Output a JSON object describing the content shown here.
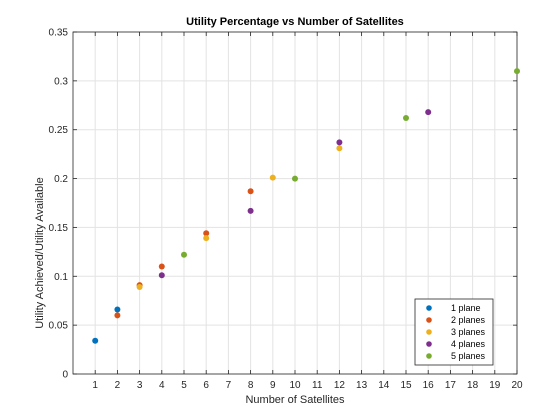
{
  "chart_data": {
    "type": "scatter",
    "title": "Utility Percentage vs Number of Satellites",
    "xlabel": "Number of Satellites",
    "ylabel": "Utility Achieved/Utility Available",
    "xlim": [
      0,
      20
    ],
    "ylim": [
      0,
      0.35
    ],
    "x_ticks": [
      1,
      2,
      3,
      4,
      5,
      6,
      7,
      8,
      9,
      10,
      11,
      12,
      13,
      14,
      15,
      16,
      17,
      18,
      19,
      20
    ],
    "x_tick_labels": [
      "1",
      "2",
      "3",
      "4",
      "5",
      "6",
      "7",
      "8",
      "9",
      "10",
      "11",
      "12",
      "13",
      "14",
      "15",
      "16",
      "17",
      "18",
      "19",
      "20"
    ],
    "y_ticks": [
      0,
      0.05,
      0.1,
      0.15,
      0.2,
      0.25,
      0.3,
      0.35
    ],
    "y_tick_labels": [
      "0",
      "0.05",
      "0.1",
      "0.15",
      "0.2",
      "0.25",
      "0.3",
      "0.35"
    ],
    "grid": true,
    "legend_position": "bottom-right",
    "series": [
      {
        "name": "1 plane",
        "color": "#0072BD",
        "points": [
          [
            1,
            0.034
          ],
          [
            2,
            0.066
          ]
        ]
      },
      {
        "name": "2 planes",
        "color": "#D95319",
        "points": [
          [
            2,
            0.06
          ],
          [
            3,
            0.091
          ],
          [
            4,
            0.11
          ],
          [
            6,
            0.144
          ],
          [
            8,
            0.187
          ]
        ]
      },
      {
        "name": "3 planes",
        "color": "#EDB120",
        "points": [
          [
            3,
            0.089
          ],
          [
            6,
            0.139
          ],
          [
            9,
            0.201
          ],
          [
            12,
            0.231
          ]
        ]
      },
      {
        "name": "4 planes",
        "color": "#7E2F8E",
        "points": [
          [
            4,
            0.101
          ],
          [
            8,
            0.167
          ],
          [
            12,
            0.237
          ],
          [
            16,
            0.268
          ]
        ]
      },
      {
        "name": "5 planes",
        "color": "#77AC30",
        "points": [
          [
            5,
            0.122
          ],
          [
            10,
            0.2
          ],
          [
            15,
            0.262
          ],
          [
            20,
            0.31
          ]
        ]
      }
    ]
  }
}
